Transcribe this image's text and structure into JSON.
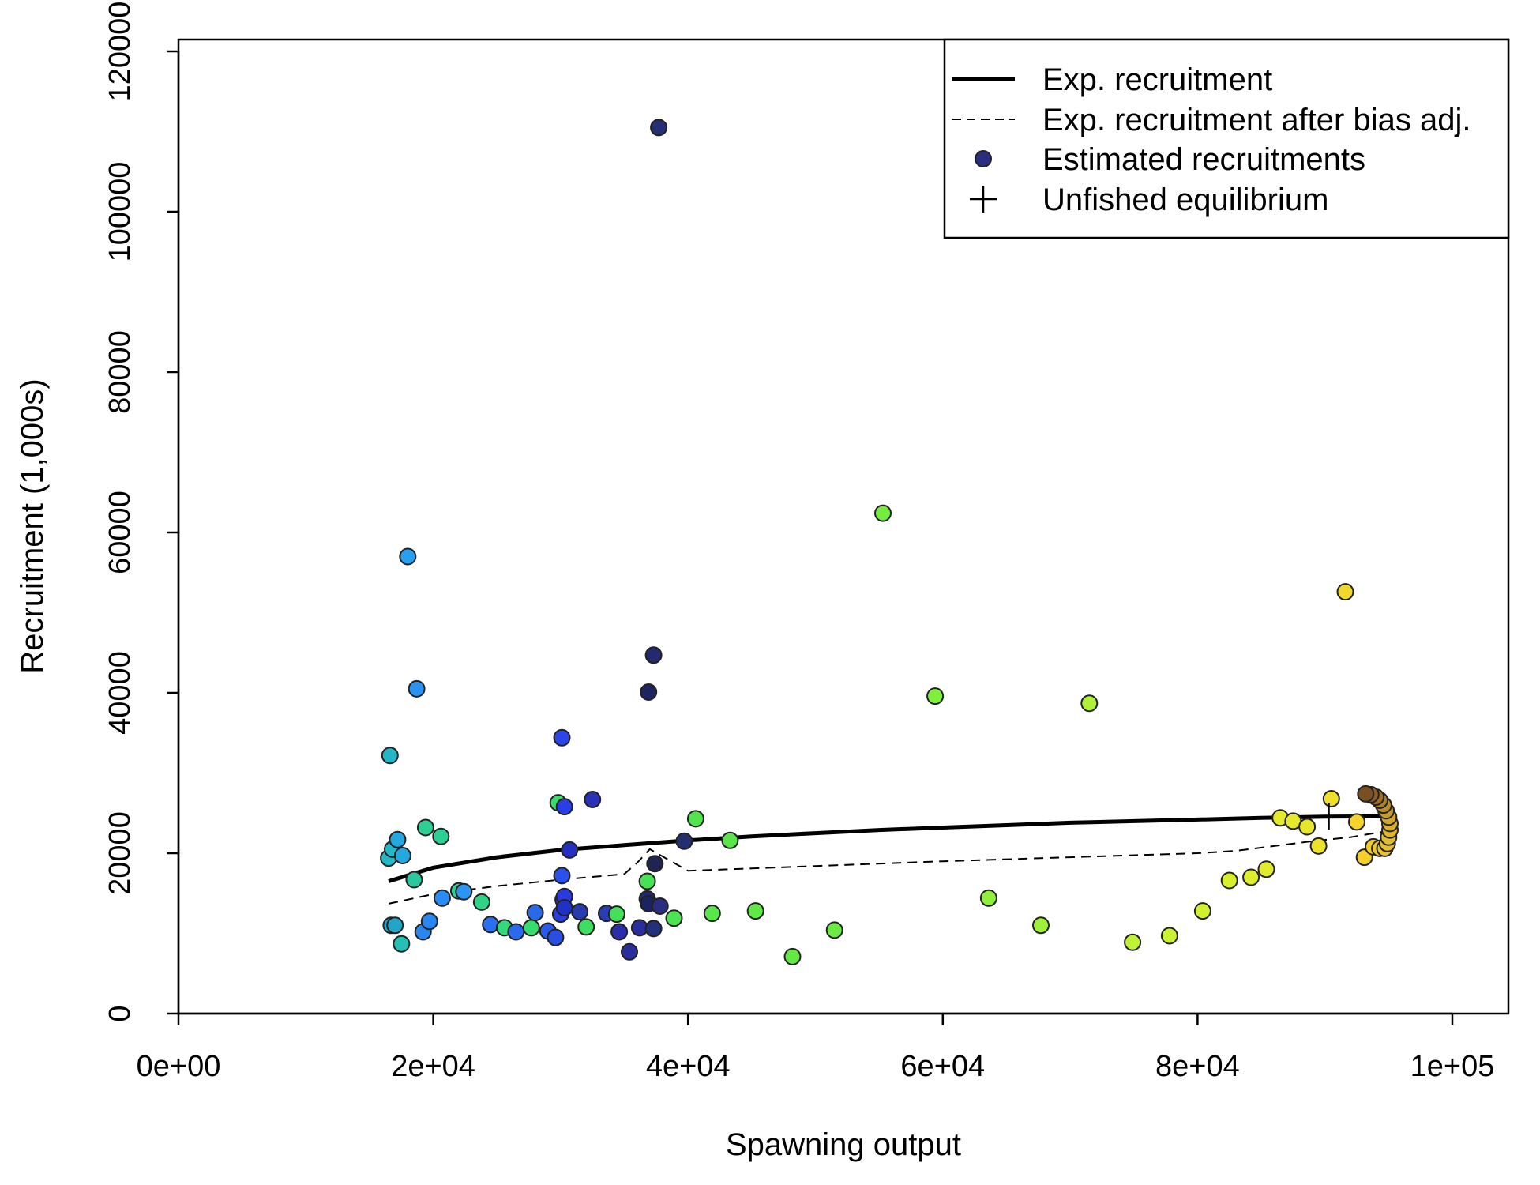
{
  "chart_data": {
    "type": "scatter",
    "xlabel": "Spawning output",
    "ylabel": "Recruitment (1,000s)",
    "xlim": [
      0,
      105000
    ],
    "ylim": [
      0,
      122000
    ],
    "x_ticks": [
      {
        "value": 0,
        "label": "0e+00"
      },
      {
        "value": 20000,
        "label": "2e+04"
      },
      {
        "value": 40000,
        "label": "4e+04"
      },
      {
        "value": 60000,
        "label": "6e+04"
      },
      {
        "value": 80000,
        "label": "8e+04"
      },
      {
        "value": 100000,
        "label": "1e+05"
      }
    ],
    "y_ticks": [
      {
        "value": 0,
        "label": "0"
      },
      {
        "value": 20000,
        "label": "20000"
      },
      {
        "value": 40000,
        "label": "40000"
      },
      {
        "value": 60000,
        "label": "60000"
      },
      {
        "value": 80000,
        "label": "80000"
      },
      {
        "value": 100000,
        "label": "100000"
      },
      {
        "value": 120000,
        "label": "120000"
      }
    ],
    "grid": false,
    "legend": {
      "position": "top-right",
      "entries": [
        {
          "label": "Exp. recruitment",
          "style": "solid-line"
        },
        {
          "label": "Exp. recruitment after bias adj.",
          "style": "dashed-line"
        },
        {
          "label": "Estimated recruitments",
          "style": "point"
        },
        {
          "label": "Unfished equilibrium",
          "style": "plus"
        }
      ]
    },
    "series": [
      {
        "name": "Exp. recruitment",
        "style": "solid-line",
        "color": "#000000",
        "x": [
          16500,
          20000,
          25000,
          30000,
          35000,
          40000,
          45000,
          50000,
          55000,
          60000,
          65000,
          70000,
          75000,
          80000,
          85000,
          90000,
          95000
        ],
        "y": [
          16500,
          18200,
          19500,
          20400,
          21000,
          21600,
          22100,
          22500,
          22900,
          23200,
          23500,
          23800,
          24000,
          24200,
          24400,
          24550,
          24600
        ]
      },
      {
        "name": "Exp. recruitment after bias adj.",
        "style": "dashed-line",
        "color": "#000000",
        "x": [
          16500,
          20000,
          25000,
          30000,
          35000,
          36000,
          37000,
          40000,
          50000,
          60000,
          70000,
          80000,
          83000,
          86000,
          89000,
          92000,
          95000
        ],
        "y": [
          13700,
          14900,
          15900,
          16700,
          17400,
          18800,
          20500,
          17800,
          18400,
          19000,
          19500,
          20000,
          20300,
          20900,
          21500,
          22000,
          22800
        ]
      },
      {
        "name": "Estimated recruitments",
        "style": "point",
        "points": [
          {
            "x": 16700,
            "y": 11000,
            "color": "#21a6c8"
          },
          {
            "x": 17000,
            "y": 11000,
            "color": "#21a6c8"
          },
          {
            "x": 16500,
            "y": 19400,
            "color": "#23b8c6"
          },
          {
            "x": 16800,
            "y": 20500,
            "color": "#23b8c6"
          },
          {
            "x": 17200,
            "y": 21700,
            "color": "#25a8df"
          },
          {
            "x": 17600,
            "y": 19700,
            "color": "#25a8df"
          },
          {
            "x": 16600,
            "y": 32200,
            "color": "#24b6c4"
          },
          {
            "x": 18000,
            "y": 57000,
            "color": "#2a9ef0"
          },
          {
            "x": 18700,
            "y": 40500,
            "color": "#2a93f0"
          },
          {
            "x": 17500,
            "y": 8700,
            "color": "#26bfb3"
          },
          {
            "x": 18500,
            "y": 16700,
            "color": "#2bc8a0"
          },
          {
            "x": 19200,
            "y": 10200,
            "color": "#2a87f2"
          },
          {
            "x": 19700,
            "y": 11500,
            "color": "#2a87f2"
          },
          {
            "x": 19400,
            "y": 23200,
            "color": "#2dcf93"
          },
          {
            "x": 20600,
            "y": 22100,
            "color": "#2dcf93"
          },
          {
            "x": 20700,
            "y": 14400,
            "color": "#2a8cf2"
          },
          {
            "x": 22000,
            "y": 15300,
            "color": "#2dcf93"
          },
          {
            "x": 22400,
            "y": 15200,
            "color": "#2a95f2"
          },
          {
            "x": 23800,
            "y": 13900,
            "color": "#30d486"
          },
          {
            "x": 24500,
            "y": 11100,
            "color": "#2a70ee"
          },
          {
            "x": 25600,
            "y": 10700,
            "color": "#33da7b"
          },
          {
            "x": 26500,
            "y": 10200,
            "color": "#2a6aee"
          },
          {
            "x": 27700,
            "y": 10700,
            "color": "#36dc6f"
          },
          {
            "x": 28000,
            "y": 12600,
            "color": "#2a6ae8"
          },
          {
            "x": 29000,
            "y": 10300,
            "color": "#2a5ae8"
          },
          {
            "x": 29600,
            "y": 9500,
            "color": "#2a4fe0"
          },
          {
            "x": 29800,
            "y": 26300,
            "color": "#39dc6a"
          },
          {
            "x": 30000,
            "y": 12400,
            "color": "#2a3ee8"
          },
          {
            "x": 30100,
            "y": 34400,
            "color": "#2c45e8"
          },
          {
            "x": 30100,
            "y": 17200,
            "color": "#2a50ee"
          },
          {
            "x": 30200,
            "y": 14200,
            "color": "#2a3ae0"
          },
          {
            "x": 30300,
            "y": 14600,
            "color": "#2a3ae0"
          },
          {
            "x": 30300,
            "y": 13200,
            "color": "#1f32c8"
          },
          {
            "x": 30300,
            "y": 25800,
            "color": "#2a3ee8"
          },
          {
            "x": 30700,
            "y": 20400,
            "color": "#2430c0"
          },
          {
            "x": 31500,
            "y": 12700,
            "color": "#2a3ab0"
          },
          {
            "x": 32000,
            "y": 10800,
            "color": "#3ede60"
          },
          {
            "x": 32500,
            "y": 26700,
            "color": "#2a30b8"
          },
          {
            "x": 33600,
            "y": 12500,
            "color": "#2a3cb8"
          },
          {
            "x": 34400,
            "y": 12400,
            "color": "#44e05a"
          },
          {
            "x": 34600,
            "y": 10200,
            "color": "#2a2ea8"
          },
          {
            "x": 35400,
            "y": 7700,
            "color": "#2a2e9c"
          },
          {
            "x": 36200,
            "y": 10700,
            "color": "#2a2e9c"
          },
          {
            "x": 36800,
            "y": 16500,
            "color": "#48e256"
          },
          {
            "x": 36800,
            "y": 14300,
            "color": "#1e2a6a"
          },
          {
            "x": 36900,
            "y": 13700,
            "color": "#1a2460"
          },
          {
            "x": 36900,
            "y": 40100,
            "color": "#1e2460"
          },
          {
            "x": 37300,
            "y": 44700,
            "color": "#232a6e"
          },
          {
            "x": 37300,
            "y": 10600,
            "color": "#23307a"
          },
          {
            "x": 37400,
            "y": 18700,
            "color": "#1e2550"
          },
          {
            "x": 37700,
            "y": 110500,
            "color": "#252f74"
          },
          {
            "x": 37800,
            "y": 13400,
            "color": "#2a2e80"
          },
          {
            "x": 38900,
            "y": 11900,
            "color": "#4ee352"
          },
          {
            "x": 39700,
            "y": 21500,
            "color": "#232f6e"
          },
          {
            "x": 40600,
            "y": 24300,
            "color": "#52e44e"
          },
          {
            "x": 41900,
            "y": 12500,
            "color": "#58e64a"
          },
          {
            "x": 43300,
            "y": 21600,
            "color": "#5ae648"
          },
          {
            "x": 45300,
            "y": 12800,
            "color": "#60e846"
          },
          {
            "x": 48200,
            "y": 7100,
            "color": "#64e944"
          },
          {
            "x": 51500,
            "y": 10400,
            "color": "#6aea42"
          },
          {
            "x": 55300,
            "y": 62400,
            "color": "#75ed3e"
          },
          {
            "x": 59400,
            "y": 39600,
            "color": "#80ee3c"
          },
          {
            "x": 63600,
            "y": 14400,
            "color": "#90ef3a"
          },
          {
            "x": 67700,
            "y": 11000,
            "color": "#9ef038"
          },
          {
            "x": 71500,
            "y": 38700,
            "color": "#aef136"
          },
          {
            "x": 74900,
            "y": 8900,
            "color": "#bef234"
          },
          {
            "x": 77800,
            "y": 9700,
            "color": "#c8f232"
          },
          {
            "x": 80400,
            "y": 12800,
            "color": "#d0f130"
          },
          {
            "x": 82500,
            "y": 16600,
            "color": "#d8ef2e"
          },
          {
            "x": 84200,
            "y": 17000,
            "color": "#dcee2e"
          },
          {
            "x": 85400,
            "y": 18000,
            "color": "#e0ec2c"
          },
          {
            "x": 86500,
            "y": 24400,
            "color": "#e4ea2c"
          },
          {
            "x": 87500,
            "y": 24000,
            "color": "#e6e82c"
          },
          {
            "x": 88600,
            "y": 23300,
            "color": "#e8e62c"
          },
          {
            "x": 89500,
            "y": 20900,
            "color": "#ece22a"
          },
          {
            "x": 90500,
            "y": 26800,
            "color": "#f0de2a"
          },
          {
            "x": 91600,
            "y": 52600,
            "color": "#f2d82a"
          },
          {
            "x": 92500,
            "y": 23900,
            "color": "#f4d42a"
          },
          {
            "x": 93100,
            "y": 19500,
            "color": "#f6d02a"
          },
          {
            "x": 93800,
            "y": 20800,
            "color": "#f2cc2a"
          },
          {
            "x": 94300,
            "y": 20600,
            "color": "#eec82a"
          },
          {
            "x": 94700,
            "y": 20600,
            "color": "#eac42a"
          },
          {
            "x": 94900,
            "y": 21200,
            "color": "#e6c02a"
          },
          {
            "x": 95000,
            "y": 22000,
            "color": "#e2bc2a"
          },
          {
            "x": 95100,
            "y": 22900,
            "color": "#deb82a"
          },
          {
            "x": 95100,
            "y": 23700,
            "color": "#d8b02a"
          },
          {
            "x": 95000,
            "y": 24500,
            "color": "#d2a82a"
          },
          {
            "x": 94800,
            "y": 25300,
            "color": "#c89c2a"
          },
          {
            "x": 94600,
            "y": 26000,
            "color": "#bc8e28"
          },
          {
            "x": 94300,
            "y": 26600,
            "color": "#ae7e26"
          },
          {
            "x": 94000,
            "y": 27000,
            "color": "#9e6e24"
          },
          {
            "x": 93600,
            "y": 27300,
            "color": "#8c5e22"
          },
          {
            "x": 93200,
            "y": 27400,
            "color": "#7a5020"
          }
        ]
      },
      {
        "name": "Unfished equilibrium",
        "style": "plus",
        "color": "#000000",
        "x": [
          90300
        ],
        "y": [
          24600
        ]
      }
    ]
  }
}
